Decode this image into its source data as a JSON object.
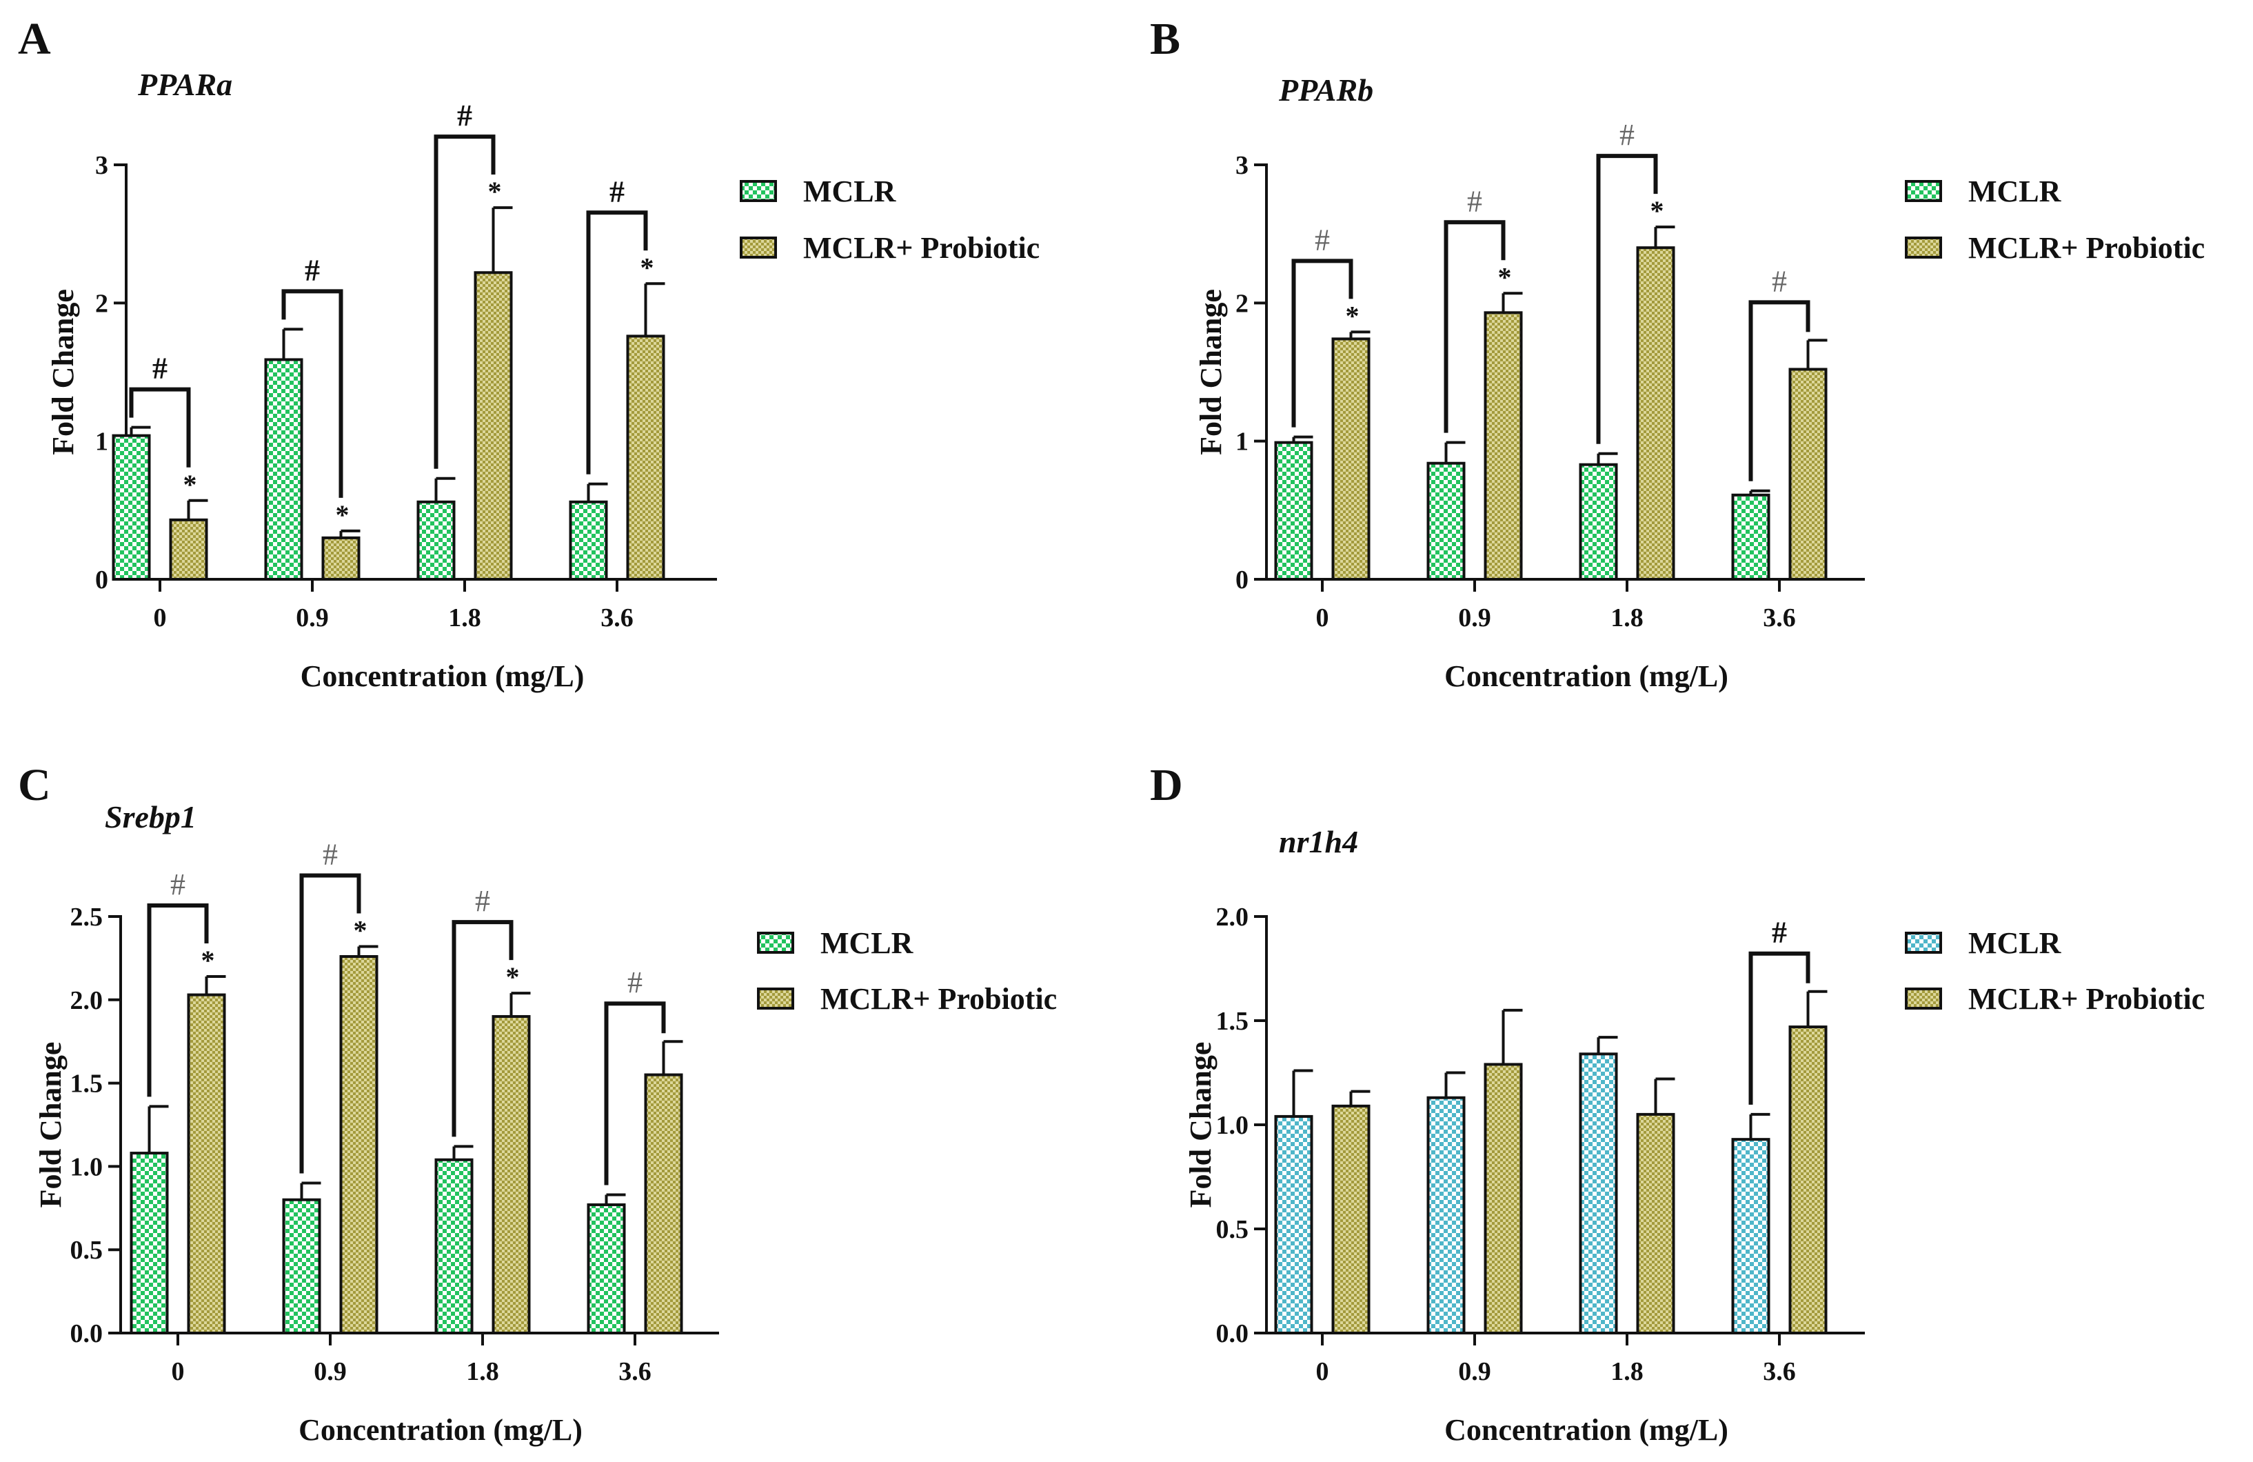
{
  "colors": {
    "green_checker": "#22c35e",
    "teal_checker": "#4fb6c9",
    "olive_checker": "#a39a3c",
    "olive_light": "#dcd79a",
    "axis": "#111111",
    "hash_light": "#666666"
  },
  "chart_data": [
    {
      "panel": "A",
      "type": "bar",
      "title": "PPARa",
      "xlabel": "Concentration (mg/L)",
      "ylabel": "Fold Change",
      "categories": [
        "0",
        "0.9",
        "1.8",
        "3.6"
      ],
      "ylim": [
        0,
        3
      ],
      "yticks": [
        0,
        1,
        2,
        3
      ],
      "ytick_labels": [
        "0",
        "1",
        "2",
        "3"
      ],
      "grid": false,
      "legend_position": "right",
      "hash_style": "bold",
      "series": [
        {
          "name": "MCLR",
          "pattern": "green",
          "values": [
            1.04,
            1.59,
            0.56,
            0.56
          ],
          "errors": [
            0.06,
            0.22,
            0.17,
            0.13
          ]
        },
        {
          "name": "MCLR+ Probiotic",
          "pattern": "olive",
          "values": [
            0.43,
            0.3,
            2.22,
            1.76
          ],
          "errors": [
            0.14,
            0.05,
            0.47,
            0.38
          ]
        }
      ],
      "star_labels": [
        "*",
        "*",
        "*",
        "*"
      ],
      "hash_labels": [
        "#",
        "#",
        "#",
        "#"
      ]
    },
    {
      "panel": "B",
      "type": "bar",
      "title": "PPARb",
      "xlabel": "Concentration (mg/L)",
      "ylabel": "Fold Change",
      "categories": [
        "0",
        "0.9",
        "1.8",
        "3.6"
      ],
      "ylim": [
        0,
        3
      ],
      "yticks": [
        0,
        1,
        2,
        3
      ],
      "ytick_labels": [
        "0",
        "1",
        "2",
        "3"
      ],
      "grid": false,
      "legend_position": "right",
      "hash_style": "light",
      "series": [
        {
          "name": "MCLR",
          "pattern": "green",
          "values": [
            0.99,
            0.84,
            0.83,
            0.61
          ],
          "errors": [
            0.04,
            0.15,
            0.08,
            0.03
          ]
        },
        {
          "name": "MCLR+ Probiotic",
          "pattern": "olive",
          "values": [
            1.74,
            1.93,
            2.4,
            1.52
          ],
          "errors": [
            0.05,
            0.14,
            0.15,
            0.21
          ]
        }
      ],
      "star_labels": [
        "*",
        "*",
        "*",
        ""
      ],
      "hash_labels": [
        "#",
        "#",
        "#",
        "#"
      ]
    },
    {
      "panel": "C",
      "type": "bar",
      "title": "Srebp1",
      "xlabel": "Concentration (mg/L)",
      "ylabel": "Fold Change",
      "categories": [
        "0",
        "0.9",
        "1.8",
        "3.6"
      ],
      "ylim": [
        0,
        2.5
      ],
      "yticks": [
        0,
        0.5,
        1,
        1.5,
        2,
        2.5
      ],
      "ytick_labels": [
        "0.0",
        "0.5",
        "1.0",
        "1.5",
        "2.0",
        "2.5"
      ],
      "grid": false,
      "legend_position": "right",
      "hash_style": "light",
      "series": [
        {
          "name": "MCLR",
          "pattern": "green",
          "values": [
            1.08,
            0.8,
            1.04,
            0.77
          ],
          "errors": [
            0.28,
            0.1,
            0.08,
            0.06
          ]
        },
        {
          "name": "MCLR+ Probiotic",
          "pattern": "olive",
          "values": [
            2.03,
            2.26,
            1.9,
            1.55
          ],
          "errors": [
            0.11,
            0.06,
            0.14,
            0.2
          ]
        }
      ],
      "star_labels": [
        "*",
        "*",
        "*",
        ""
      ],
      "hash_labels": [
        "#",
        "#",
        "#",
        "#"
      ]
    },
    {
      "panel": "D",
      "type": "bar",
      "title": "nr1h4",
      "xlabel": "Concentration (mg/L)",
      "ylabel": "Fold Change",
      "categories": [
        "0",
        "0.9",
        "1.8",
        "3.6"
      ],
      "ylim": [
        0,
        2
      ],
      "yticks": [
        0,
        0.5,
        1,
        1.5,
        2
      ],
      "ytick_labels": [
        "0.0",
        "0.5",
        "1.0",
        "1.5",
        "2.0"
      ],
      "grid": false,
      "legend_position": "right",
      "hash_style": "bold",
      "series": [
        {
          "name": "MCLR",
          "pattern": "teal",
          "values": [
            1.04,
            1.13,
            1.34,
            0.93
          ],
          "errors": [
            0.22,
            0.12,
            0.08,
            0.12
          ]
        },
        {
          "name": "MCLR+ Probiotic",
          "pattern": "olive",
          "values": [
            1.09,
            1.29,
            1.05,
            1.47
          ],
          "errors": [
            0.07,
            0.26,
            0.17,
            0.17
          ]
        }
      ],
      "star_labels": [
        "",
        "",
        "",
        ""
      ],
      "hash_labels": [
        "",
        "",
        "",
        "#"
      ]
    }
  ]
}
